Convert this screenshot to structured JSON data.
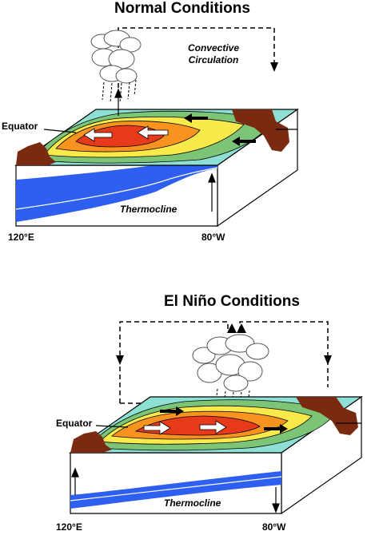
{
  "normal": {
    "title": "Normal Conditions",
    "circulation_label": "Convective Circulation",
    "equator_label": "Equator",
    "thermocline_label": "Thermocline",
    "west_label": "120°E",
    "east_label": "80°W"
  },
  "nino": {
    "title": "El Niño Conditions",
    "equator_label": "Equator",
    "thermocline_label": "Thermocline",
    "west_label": "120°E",
    "east_label": "80°W"
  },
  "colors": {
    "warm_core": "#e63a1a",
    "warm": "#f7931e",
    "mid": "#f9e94a",
    "cool": "#7cc576",
    "cold": "#8fe0d4",
    "deep_water": "#2e5ff0",
    "land": "#7a2a10"
  }
}
